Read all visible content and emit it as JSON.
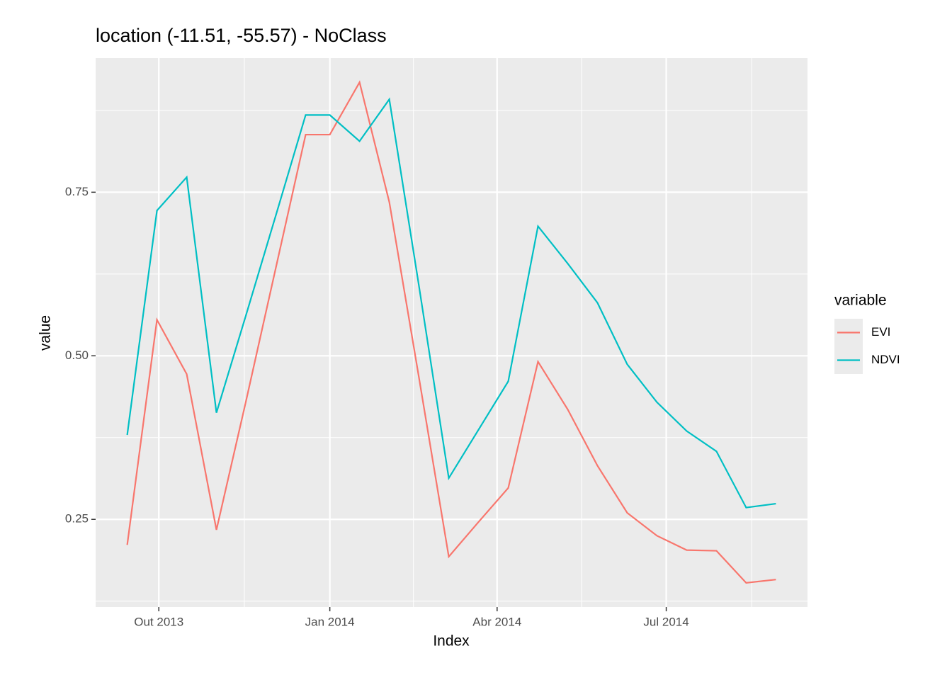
{
  "chart_data": {
    "type": "line",
    "title": "location (-11.51, -55.57) - NoClass",
    "x_label": "Index",
    "y_label": "value",
    "legend_title": "variable",
    "legend": "right",
    "grid": true,
    "x": [
      "2013-09-14",
      "2013-09-30",
      "2013-10-16",
      "2013-11-01",
      "2013-11-17",
      "2013-12-03",
      "2013-12-19",
      "2014-01-01",
      "2014-01-17",
      "2014-02-02",
      "2014-02-18",
      "2014-03-06",
      "2014-03-22",
      "2014-04-07",
      "2014-04-23",
      "2014-05-09",
      "2014-05-25",
      "2014-06-10",
      "2014-06-26",
      "2014-07-12",
      "2014-07-28",
      "2014-08-13",
      "2014-08-29"
    ],
    "series": [
      {
        "name": "EVI",
        "color": "#f8766d",
        "values": [
          0.211,
          0.555,
          0.472,
          0.234,
          0.432,
          0.635,
          0.838,
          0.838,
          0.918,
          0.735,
          0.466,
          0.193,
          0.246,
          0.298,
          0.491,
          0.418,
          0.332,
          0.26,
          0.225,
          0.203,
          0.202,
          0.153,
          0.158
        ]
      },
      {
        "name": "NDVI",
        "color": "#00bfc4",
        "values": [
          0.379,
          0.722,
          0.773,
          0.413,
          0.563,
          0.715,
          0.868,
          0.868,
          0.828,
          0.892,
          0.606,
          0.313,
          0.387,
          0.461,
          0.698,
          0.641,
          0.581,
          0.487,
          0.429,
          0.385,
          0.354,
          0.268,
          0.274
        ]
      }
    ],
    "xlim": [
      "2013-08-28",
      "2014-09-15"
    ],
    "xticks": [
      {
        "value": "2013-10-01",
        "label": "Out 2013"
      },
      {
        "value": "2014-01-01",
        "label": "Jan 2014"
      },
      {
        "value": "2014-04-01",
        "label": "Abr 2014"
      },
      {
        "value": "2014-07-01",
        "label": "Jul 2014"
      }
    ],
    "ylim": [
      0.116,
      0.955
    ],
    "yticks": [
      {
        "value": 0.25,
        "label": "0.25"
      },
      {
        "value": 0.5,
        "label": "0.50"
      },
      {
        "value": 0.75,
        "label": "0.75"
      }
    ]
  }
}
